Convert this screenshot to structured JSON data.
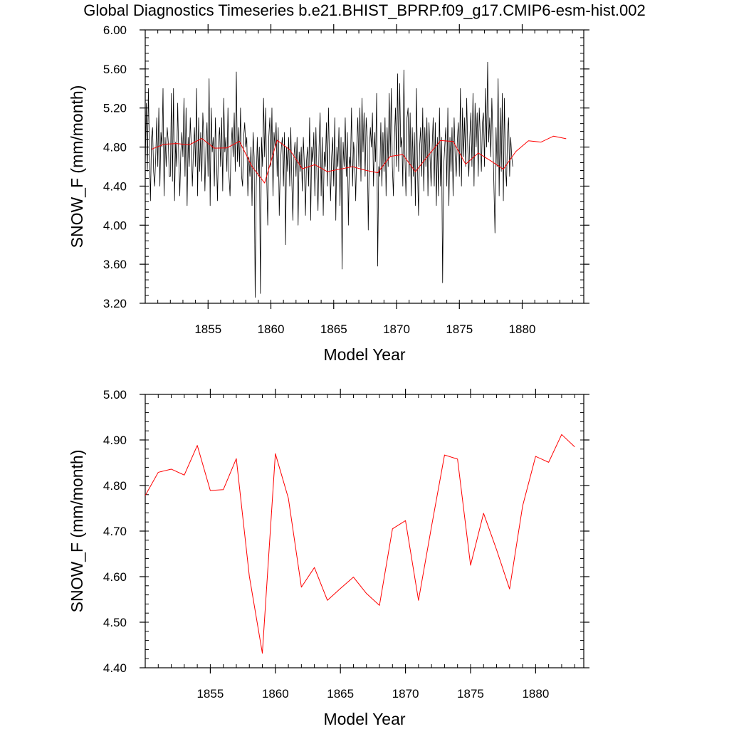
{
  "title": "Global Diagnostics Timeseries b.e21.BHIST_BPRP.f09_g17.CMIP6-esm-hist.002",
  "colors": {
    "monthly": "#000000",
    "annual": "#ff0000",
    "axis": "#000000"
  },
  "chart_data": [
    {
      "type": "line",
      "title": "",
      "xlabel": "Model Year",
      "ylabel": "SNOW_F (mm/month)",
      "xlim": [
        1850.0,
        1884.9
      ],
      "ylim": [
        3.2,
        6.0
      ],
      "xticks": [
        1855,
        1860,
        1865,
        1870,
        1875,
        1880
      ],
      "xtick_labels": [
        "1855",
        "1860",
        "1865",
        "1870",
        "1875",
        "1880"
      ],
      "yticks": [
        3.2,
        3.6,
        4.0,
        4.4,
        4.8,
        5.2,
        5.6,
        6.0
      ],
      "ytick_labels": [
        "3.20",
        "3.60",
        "4.00",
        "4.40",
        "4.80",
        "5.20",
        "5.60",
        "6.00"
      ],
      "series": [
        {
          "name": "monthly",
          "x_start": 1850.0,
          "x_step": 0.083333,
          "values": [
            4.6,
            5.25,
            4.55,
            5.4,
            4.8,
            4.25,
            4.9,
            5.0,
            4.55,
            4.4,
            4.7,
            5.1,
            4.6,
            5.2,
            4.4,
            4.95,
            4.8,
            5.4,
            4.3,
            4.9,
            4.6,
            5.0,
            4.85,
            4.5,
            4.5,
            5.35,
            4.45,
            5.4,
            4.25,
            4.85,
            4.6,
            5.25,
            4.7,
            4.3,
            4.75,
            4.95,
            4.7,
            5.3,
            4.5,
            5.2,
            4.2,
            4.9,
            4.6,
            5.1,
            4.8,
            4.4,
            4.75,
            5.0,
            4.6,
            5.4,
            4.3,
            5.1,
            4.55,
            4.95,
            4.45,
            5.15,
            4.9,
            4.35,
            4.8,
            5.05,
            4.5,
            5.5,
            4.2,
            5.2,
            4.75,
            4.9,
            4.4,
            5.1,
            4.7,
            4.25,
            4.85,
            5.0,
            4.6,
            5.1,
            4.35,
            5.3,
            4.75,
            4.9,
            4.55,
            5.2,
            4.5,
            4.3,
            4.8,
            5.0,
            4.7,
            5.15,
            4.55,
            5.57,
            4.65,
            5.0,
            4.6,
            5.2,
            4.5,
            4.4,
            4.9,
            5.05,
            4.8,
            4.9,
            4.3,
            4.7,
            4.5,
            4.8,
            4.2,
            4.95,
            4.7,
            3.26,
            4.4,
            4.9,
            4.5,
            4.8,
            3.3,
            4.9,
            4.6,
            5.3,
            4.7,
            5.2,
            4.5,
            4.0,
            4.9,
            5.1,
            4.6,
            5.2,
            4.3,
            4.95,
            4.8,
            5.05,
            4.5,
            5.0,
            4.1,
            4.6,
            4.8,
            4.9,
            4.4,
            4.95,
            3.8,
            4.8,
            4.55,
            4.9,
            4.4,
            5.0,
            4.45,
            4.05,
            4.7,
            4.85,
            4.5,
            4.9,
            4.0,
            4.75,
            4.55,
            4.8,
            4.35,
            4.9,
            4.6,
            4.1,
            4.65,
            4.8,
            4.4,
            5.1,
            4.05,
            4.8,
            4.65,
            4.95,
            4.3,
            5.0,
            4.5,
            4.15,
            4.8,
            5.15,
            4.3,
            4.9,
            4.1,
            4.75,
            4.6,
            5.05,
            4.4,
            5.2,
            4.65,
            4.25,
            4.7,
            4.9,
            4.4,
            5.1,
            4.05,
            4.8,
            4.6,
            5.0,
            4.2,
            4.9,
            3.55,
            4.85,
            4.6,
            5.1,
            4.5,
            4.95,
            4.0,
            4.7,
            4.6,
            5.2,
            4.4,
            4.85,
            4.7,
            4.25,
            4.8,
            5.1,
            4.6,
            5.2,
            4.45,
            5.3,
            4.75,
            5.15,
            4.5,
            5.1,
            4.9,
            3.95,
            4.75,
            5.0,
            4.8,
            5.15,
            4.4,
            4.95,
            4.65,
            5.35,
            3.58,
            4.6,
            4.5,
            5.05,
            4.4,
            4.95,
            4.55,
            5.1,
            4.3,
            5.0,
            4.6,
            5.35,
            4.7,
            5.4,
            4.6,
            4.3,
            4.9,
            5.2,
            4.6,
            5.55,
            4.55,
            5.45,
            4.8,
            4.9,
            4.4,
            5.59,
            4.7,
            4.3,
            5.1,
            5.2,
            4.5,
            5.15,
            4.3,
            5.0,
            4.5,
            4.95,
            4.2,
            5.4,
            4.6,
            4.1,
            4.8,
            5.0,
            4.5,
            5.2,
            4.35,
            5.0,
            4.6,
            5.1,
            4.3,
            5.05,
            4.7,
            4.4,
            4.8,
            5.1,
            4.4,
            5.05,
            4.2,
            4.9,
            4.3,
            5.2,
            4.4,
            4.9,
            3.41,
            4.6,
            4.8,
            5.0,
            4.4,
            5.2,
            4.2,
            4.9,
            4.55,
            5.0,
            4.3,
            5.1,
            4.7,
            4.5,
            4.85,
            5.05,
            4.5,
            5.4,
            4.4,
            5.2,
            4.7,
            5.1,
            4.6,
            5.3,
            4.8,
            4.5,
            4.9,
            5.15,
            4.6,
            5.35,
            4.4,
            5.25,
            4.8,
            5.15,
            4.5,
            5.2,
            4.9,
            4.55,
            5.05,
            5.15,
            4.6,
            5.4,
            4.8,
            5.67,
            4.85,
            5.1,
            4.7,
            5.3,
            4.9,
            4.4,
            3.92,
            5.0,
            4.6,
            5.5,
            4.3,
            5.2,
            4.55,
            5.35,
            4.25,
            5.3,
            4.6,
            4.4,
            4.95,
            5.1,
            4.5,
            4.9,
            4.7,
            4.6
          ]
        },
        {
          "name": "annual",
          "x_start": 1850.5,
          "x_step": 1,
          "values": [
            4.778,
            4.829,
            4.836,
            4.823,
            4.888,
            4.789,
            4.791,
            4.859,
            4.601,
            4.432,
            4.87,
            4.772,
            4.577,
            4.62,
            4.548,
            4.574,
            4.599,
            4.563,
            4.537,
            4.705,
            4.723,
            4.548,
            4.71,
            4.867,
            4.858,
            4.625,
            4.739,
            4.659,
            4.573,
            4.755,
            4.864,
            4.851,
            4.912,
            4.885
          ]
        }
      ]
    },
    {
      "type": "line",
      "title": "",
      "xlabel": "Model Year",
      "ylabel": "SNOW_F (mm/month)",
      "xlim": [
        1850.0,
        1883.7
      ],
      "ylim": [
        4.4,
        5.0
      ],
      "xticks": [
        1855,
        1860,
        1865,
        1870,
        1875,
        1880
      ],
      "xtick_labels": [
        "1855",
        "1860",
        "1865",
        "1870",
        "1875",
        "1880"
      ],
      "yticks": [
        4.4,
        4.5,
        4.6,
        4.7,
        4.8,
        4.9,
        5.0
      ],
      "ytick_labels": [
        "4.40",
        "4.50",
        "4.60",
        "4.70",
        "4.80",
        "4.90",
        "5.00"
      ],
      "series": [
        {
          "name": "annual",
          "x_start": 1850.0,
          "x_step": 1,
          "values": [
            4.778,
            4.829,
            4.836,
            4.823,
            4.888,
            4.789,
            4.791,
            4.859,
            4.601,
            4.432,
            4.87,
            4.772,
            4.577,
            4.62,
            4.548,
            4.574,
            4.599,
            4.563,
            4.537,
            4.705,
            4.723,
            4.548,
            4.71,
            4.867,
            4.858,
            4.625,
            4.739,
            4.659,
            4.573,
            4.755,
            4.864,
            4.851,
            4.912,
            4.885
          ]
        }
      ]
    }
  ]
}
